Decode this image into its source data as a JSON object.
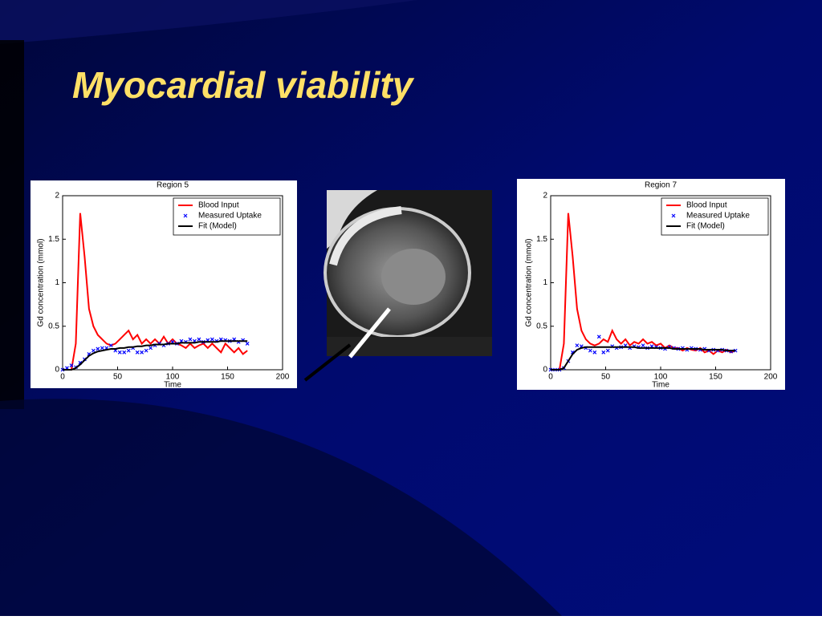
{
  "title": "Myocardial viability",
  "chart_data": [
    {
      "type": "line",
      "title": "Region 5",
      "xlabel": "Time",
      "ylabel": "Gd concentration (mmol)",
      "xlim": [
        0,
        200
      ],
      "xticks": [
        0,
        50,
        100,
        150,
        200
      ],
      "ylim": [
        0,
        2
      ],
      "yticks": [
        0,
        0.5,
        1,
        1.5,
        2
      ],
      "legend": "upper right",
      "x": [
        0,
        4,
        8,
        12,
        16,
        20,
        24,
        28,
        32,
        36,
        40,
        44,
        48,
        52,
        56,
        60,
        64,
        68,
        72,
        76,
        80,
        84,
        88,
        92,
        96,
        100,
        104,
        108,
        112,
        116,
        120,
        124,
        128,
        132,
        136,
        140,
        144,
        148,
        152,
        156,
        160,
        164,
        168
      ],
      "series": [
        {
          "name": "Blood Input",
          "color": "#ff0000",
          "mode": "line",
          "values": [
            0,
            0,
            0,
            0.3,
            1.8,
            1.3,
            0.7,
            0.5,
            0.4,
            0.35,
            0.3,
            0.28,
            0.3,
            0.35,
            0.4,
            0.45,
            0.35,
            0.4,
            0.3,
            0.35,
            0.3,
            0.35,
            0.3,
            0.38,
            0.3,
            0.35,
            0.3,
            0.28,
            0.25,
            0.3,
            0.25,
            0.28,
            0.3,
            0.25,
            0.3,
            0.25,
            0.2,
            0.3,
            0.25,
            0.2,
            0.25,
            0.18,
            0.22
          ]
        },
        {
          "name": "Measured Uptake",
          "color": "#0000ff",
          "mode": "markers",
          "values": [
            0,
            0.02,
            0.05,
            0.03,
            0.08,
            0.12,
            0.18,
            0.22,
            0.24,
            0.25,
            0.25,
            0.28,
            0.22,
            0.2,
            0.2,
            0.22,
            0.25,
            0.2,
            0.2,
            0.22,
            0.25,
            0.28,
            0.3,
            0.28,
            0.3,
            0.32,
            0.3,
            0.33,
            0.32,
            0.35,
            0.33,
            0.35,
            0.32,
            0.34,
            0.35,
            0.33,
            0.35,
            0.34,
            0.33,
            0.35,
            0.32,
            0.34,
            0.3
          ]
        },
        {
          "name": "Fit (Model)",
          "color": "#000000",
          "mode": "line",
          "values": [
            0,
            0,
            0,
            0.02,
            0.06,
            0.11,
            0.16,
            0.19,
            0.21,
            0.22,
            0.23,
            0.24,
            0.24,
            0.25,
            0.25,
            0.26,
            0.26,
            0.27,
            0.27,
            0.28,
            0.28,
            0.29,
            0.29,
            0.29,
            0.3,
            0.3,
            0.3,
            0.31,
            0.31,
            0.31,
            0.31,
            0.32,
            0.32,
            0.32,
            0.32,
            0.32,
            0.33,
            0.33,
            0.33,
            0.33,
            0.33,
            0.33,
            0.33
          ]
        }
      ]
    },
    {
      "type": "line",
      "title": "Region 7",
      "xlabel": "Time",
      "ylabel": "Gd concentration (mmol)",
      "xlim": [
        0,
        200
      ],
      "xticks": [
        0,
        50,
        100,
        150,
        200
      ],
      "ylim": [
        0,
        2
      ],
      "yticks": [
        0,
        0.5,
        1,
        1.5,
        2
      ],
      "legend": "upper right",
      "x": [
        0,
        4,
        8,
        12,
        16,
        20,
        24,
        28,
        32,
        36,
        40,
        44,
        48,
        52,
        56,
        60,
        64,
        68,
        72,
        76,
        80,
        84,
        88,
        92,
        96,
        100,
        104,
        108,
        112,
        116,
        120,
        124,
        128,
        132,
        136,
        140,
        144,
        148,
        152,
        156,
        160,
        164,
        168
      ],
      "series": [
        {
          "name": "Blood Input",
          "color": "#ff0000",
          "mode": "line",
          "values": [
            0,
            0,
            0,
            0.3,
            1.8,
            1.3,
            0.7,
            0.45,
            0.35,
            0.3,
            0.28,
            0.3,
            0.35,
            0.32,
            0.45,
            0.35,
            0.3,
            0.35,
            0.28,
            0.32,
            0.3,
            0.35,
            0.3,
            0.32,
            0.28,
            0.3,
            0.25,
            0.28,
            0.25,
            0.25,
            0.22,
            0.25,
            0.23,
            0.22,
            0.25,
            0.2,
            0.22,
            0.18,
            0.22,
            0.2,
            0.23,
            0.2,
            0.22
          ]
        },
        {
          "name": "Measured Uptake",
          "color": "#0000ff",
          "mode": "markers",
          "values": [
            0,
            0,
            0,
            0.02,
            0.1,
            0.2,
            0.28,
            0.27,
            0.25,
            0.22,
            0.2,
            0.38,
            0.2,
            0.22,
            0.27,
            0.25,
            0.26,
            0.28,
            0.25,
            0.27,
            0.26,
            0.28,
            0.25,
            0.27,
            0.26,
            0.25,
            0.24,
            0.26,
            0.25,
            0.24,
            0.25,
            0.23,
            0.25,
            0.24,
            0.23,
            0.24,
            0.22,
            0.23,
            0.22,
            0.23,
            0.22,
            0.21,
            0.22
          ]
        },
        {
          "name": "Fit (Model)",
          "color": "#000000",
          "mode": "line",
          "values": [
            0,
            0,
            0,
            0.02,
            0.1,
            0.18,
            0.23,
            0.25,
            0.26,
            0.26,
            0.26,
            0.26,
            0.26,
            0.26,
            0.26,
            0.26,
            0.26,
            0.26,
            0.26,
            0.26,
            0.25,
            0.25,
            0.25,
            0.25,
            0.25,
            0.25,
            0.25,
            0.25,
            0.24,
            0.24,
            0.24,
            0.24,
            0.24,
            0.24,
            0.24,
            0.23,
            0.23,
            0.23,
            0.23,
            0.23,
            0.22,
            0.22,
            0.22
          ]
        }
      ]
    }
  ]
}
